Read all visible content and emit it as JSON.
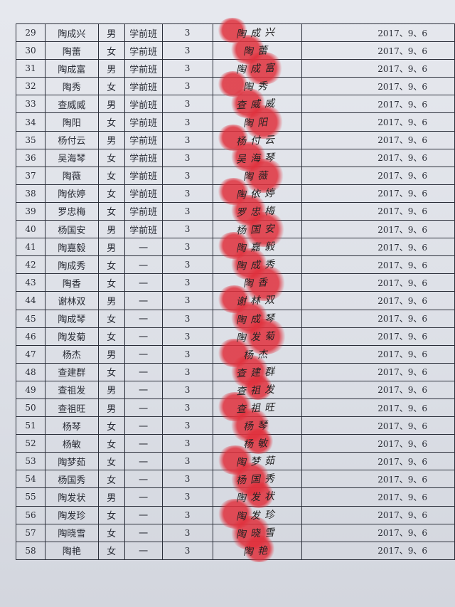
{
  "colors": {
    "ink": "#2a2d36",
    "fingerprint": "#e0303c"
  },
  "rows": [
    {
      "no": "29",
      "name": "陶成兴",
      "sex": "男",
      "grade": "学前班",
      "count": "3",
      "signature": "陶成兴",
      "date": "2017、9、6"
    },
    {
      "no": "30",
      "name": "陶蕾",
      "sex": "女",
      "grade": "学前班",
      "count": "3",
      "signature": "陶蕾",
      "date": "2017、9、6"
    },
    {
      "no": "31",
      "name": "陶成富",
      "sex": "男",
      "grade": "学前班",
      "count": "3",
      "signature": "陶成富",
      "date": "2017、9、6"
    },
    {
      "no": "32",
      "name": "陶秀",
      "sex": "女",
      "grade": "学前班",
      "count": "3",
      "signature": "陶秀",
      "date": "2017、9、6"
    },
    {
      "no": "33",
      "name": "查威威",
      "sex": "男",
      "grade": "学前班",
      "count": "3",
      "signature": "查威威",
      "date": "2017、9、6"
    },
    {
      "no": "34",
      "name": "陶阳",
      "sex": "女",
      "grade": "学前班",
      "count": "3",
      "signature": "陶阳",
      "date": "2017、9、6"
    },
    {
      "no": "35",
      "name": "杨付云",
      "sex": "男",
      "grade": "学前班",
      "count": "3",
      "signature": "杨付云",
      "date": "2017、9、6"
    },
    {
      "no": "36",
      "name": "吴海琴",
      "sex": "女",
      "grade": "学前班",
      "count": "3",
      "signature": "吴海琴",
      "date": "2017、9、6"
    },
    {
      "no": "37",
      "name": "陶薇",
      "sex": "女",
      "grade": "学前班",
      "count": "3",
      "signature": "陶薇",
      "date": "2017、9、6"
    },
    {
      "no": "38",
      "name": "陶依婷",
      "sex": "女",
      "grade": "学前班",
      "count": "3",
      "signature": "陶依婷",
      "date": "2017、9、6"
    },
    {
      "no": "39",
      "name": "罗忠梅",
      "sex": "女",
      "grade": "学前班",
      "count": "3",
      "signature": "罗忠梅",
      "date": "2017、9、6"
    },
    {
      "no": "40",
      "name": "杨国安",
      "sex": "男",
      "grade": "学前班",
      "count": "3",
      "signature": "杨国安",
      "date": "2017、9、6"
    },
    {
      "no": "41",
      "name": "陶嘉毅",
      "sex": "男",
      "grade": "一",
      "count": "3",
      "signature": "陶嘉毅",
      "date": "2017、9、6"
    },
    {
      "no": "42",
      "name": "陶成秀",
      "sex": "女",
      "grade": "一",
      "count": "3",
      "signature": "陶成秀",
      "date": "2017、9、6"
    },
    {
      "no": "43",
      "name": "陶香",
      "sex": "女",
      "grade": "一",
      "count": "3",
      "signature": "陶香",
      "date": "2017、9、6"
    },
    {
      "no": "44",
      "name": "谢林双",
      "sex": "男",
      "grade": "一",
      "count": "3",
      "signature": "谢林双",
      "date": "2017、9、6"
    },
    {
      "no": "45",
      "name": "陶成琴",
      "sex": "女",
      "grade": "一",
      "count": "3",
      "signature": "陶成琴",
      "date": "2017、9、6"
    },
    {
      "no": "46",
      "name": "陶发菊",
      "sex": "女",
      "grade": "一",
      "count": "3",
      "signature": "陶发菊",
      "date": "2017、9、6"
    },
    {
      "no": "47",
      "name": "杨杰",
      "sex": "男",
      "grade": "一",
      "count": "3",
      "signature": "杨杰",
      "date": "2017、9、6"
    },
    {
      "no": "48",
      "name": "查建群",
      "sex": "女",
      "grade": "一",
      "count": "3",
      "signature": "查建群",
      "date": "2017、9、6"
    },
    {
      "no": "49",
      "name": "查祖发",
      "sex": "男",
      "grade": "一",
      "count": "3",
      "signature": "查祖发",
      "date": "2017、9、6"
    },
    {
      "no": "50",
      "name": "查祖旺",
      "sex": "男",
      "grade": "一",
      "count": "3",
      "signature": "查祖旺",
      "date": "2017、9、6"
    },
    {
      "no": "51",
      "name": "杨琴",
      "sex": "女",
      "grade": "一",
      "count": "3",
      "signature": "杨琴",
      "date": "2017、9、6"
    },
    {
      "no": "52",
      "name": "杨敏",
      "sex": "女",
      "grade": "一",
      "count": "3",
      "signature": "杨敏",
      "date": "2017、9、6"
    },
    {
      "no": "53",
      "name": "陶梦茹",
      "sex": "女",
      "grade": "一",
      "count": "3",
      "signature": "陶梦茹",
      "date": "2017、9、6"
    },
    {
      "no": "54",
      "name": "杨国秀",
      "sex": "女",
      "grade": "一",
      "count": "3",
      "signature": "杨国秀",
      "date": "2017、9、6"
    },
    {
      "no": "55",
      "name": "陶发状",
      "sex": "男",
      "grade": "一",
      "count": "3",
      "signature": "陶发状",
      "date": "2017、9、6"
    },
    {
      "no": "56",
      "name": "陶发珍",
      "sex": "女",
      "grade": "一",
      "count": "3",
      "signature": "陶发珍",
      "date": "2017、9、6"
    },
    {
      "no": "57",
      "name": "陶晓雪",
      "sex": "女",
      "grade": "一",
      "count": "3",
      "signature": "陶晓雪",
      "date": "2017、9、6"
    },
    {
      "no": "58",
      "name": "陶艳",
      "sex": "女",
      "grade": "一",
      "count": "3",
      "signature": "陶艳",
      "date": "2017、9、6"
    }
  ]
}
